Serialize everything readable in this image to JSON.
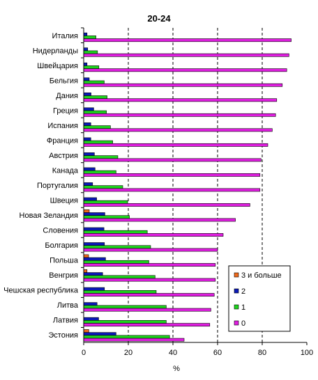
{
  "chart_data": {
    "type": "bar",
    "orientation": "horizontal",
    "title": "20-24",
    "xlabel": "%",
    "xlim": [
      0,
      100
    ],
    "xticks": [
      0,
      20,
      40,
      60,
      80,
      100
    ],
    "grid": "vertical dashed at 20, 40, 60, 80",
    "legend_position": "bottom-right",
    "categories": [
      "Италия",
      "Нидерланды",
      "Швейцария",
      "Бельгия",
      "Дания",
      "Греция",
      "Испания",
      "Франция",
      "Австрия",
      "Канада",
      "Португалия",
      "Швеция",
      "Новая Зеландия",
      "Словения",
      "Болгария",
      "Польша",
      "Венгрия",
      "Чешская республика",
      "Литва",
      "Латвия",
      "Эстония"
    ],
    "series": [
      {
        "name": "3 и больше",
        "color": "#f06a1c",
        "values": [
          0,
          0,
          0,
          0,
          0,
          0,
          0,
          0,
          0,
          0,
          0,
          0,
          2.5,
          0,
          0,
          2.2,
          1.5,
          0,
          0,
          0,
          2.3
        ]
      },
      {
        "name": "2",
        "color": "#0b1ab8",
        "values": [
          1.5,
          1.8,
          1.5,
          2.5,
          3.3,
          4.5,
          3.2,
          3.2,
          4.8,
          5.1,
          4.0,
          5.8,
          9.5,
          9.1,
          9.3,
          9.8,
          8.5,
          9.3,
          6.0,
          6.7,
          14.5
        ]
      },
      {
        "name": "1",
        "color": "#1ed41e",
        "values": [
          5.5,
          6.2,
          6.8,
          9.2,
          10.5,
          10.2,
          12.0,
          13.0,
          15.3,
          14.5,
          17.5,
          19.7,
          20.5,
          28.5,
          30.0,
          29.2,
          32.0,
          32.5,
          37.0,
          37.0,
          38.5
        ]
      },
      {
        "name": "0",
        "color": "#e01ee0",
        "values": [
          93,
          92,
          91,
          89,
          86.5,
          86,
          84.5,
          82.5,
          79.5,
          79,
          79,
          74.5,
          68,
          62.5,
          60,
          59,
          59,
          58.5,
          57,
          56.5,
          45
        ]
      }
    ]
  }
}
